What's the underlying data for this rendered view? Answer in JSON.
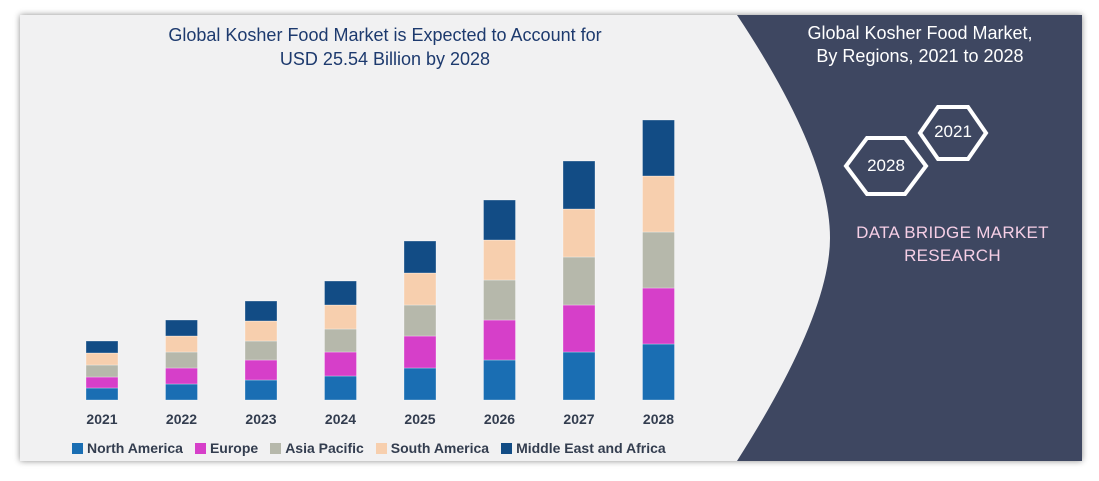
{
  "chart_data": {
    "type": "bar",
    "stacked": true,
    "title": "Global Kosher Food Market is Expected to Account for",
    "subtitle": "USD 25.54 Billion by 2028",
    "categories": [
      "2021",
      "2022",
      "2023",
      "2024",
      "2025",
      "2026",
      "2027",
      "2028"
    ],
    "series": [
      {
        "name": "North America",
        "color": "#1a6eb3",
        "values": [
          12,
          16,
          20,
          24,
          32,
          40,
          48,
          56
        ]
      },
      {
        "name": "Europe",
        "color": "#d63fc9",
        "values": [
          11,
          16,
          20,
          24,
          32,
          40,
          47,
          56
        ]
      },
      {
        "name": "Asia Pacific",
        "color": "#b6b8ab",
        "values": [
          12,
          16,
          19,
          23,
          31,
          40,
          48,
          56
        ]
      },
      {
        "name": "South America",
        "color": "#f7cfae",
        "values": [
          12,
          16,
          20,
          24,
          32,
          40,
          48,
          56
        ]
      },
      {
        "name": "Middle East and Africa",
        "color": "#124c85",
        "values": [
          12,
          16,
          20,
          24,
          32,
          40,
          48,
          56
        ]
      }
    ],
    "ylim": [
      0,
      290
    ],
    "grid": false,
    "legend_position": "bottom"
  },
  "panel": {
    "title_line1": "Global Kosher Food Market,",
    "title_line2": "By Regions, 2021 to 2028",
    "hex_end": "2028",
    "hex_start": "2021",
    "brand_line1": "DATA BRIDGE MARKET",
    "brand_line2": "RESEARCH"
  }
}
